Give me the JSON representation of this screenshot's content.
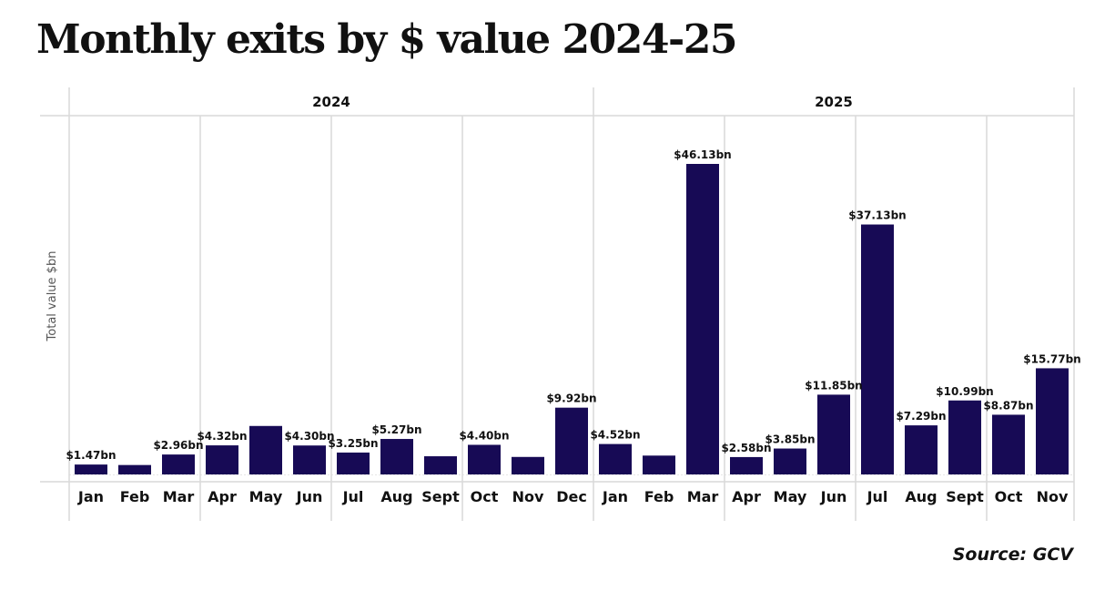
{
  "title": "Monthly exits by $ value 2024-25",
  "source": "Source: GCV",
  "colors": {
    "bar": "#170a55",
    "grid": "#d9d9d9",
    "text": "#111111"
  },
  "chart_data": {
    "type": "bar",
    "title": "Monthly exits by $ value 2024-25",
    "xlabel": "",
    "ylabel": "Total value $bn",
    "ylim": [
      0,
      50
    ],
    "grid": true,
    "legend": "none",
    "groups": [
      {
        "label": "2024",
        "categories": [
          "Jan",
          "Feb",
          "Mar",
          "Apr",
          "May",
          "Jun",
          "Jul",
          "Aug",
          "Sept",
          "Oct",
          "Nov",
          "Dec"
        ]
      },
      {
        "label": "2025",
        "categories": [
          "Jan",
          "Feb",
          "Mar",
          "Apr",
          "May",
          "Jun",
          "Jul",
          "Aug",
          "Sept",
          "Oct",
          "Nov"
        ]
      }
    ],
    "categories": [
      "Jan 2024",
      "Feb 2024",
      "Mar 2024",
      "Apr 2024",
      "May 2024",
      "Jun 2024",
      "Jul 2024",
      "Aug 2024",
      "Sept 2024",
      "Oct 2024",
      "Nov 2024",
      "Dec 2024",
      "Jan 2025",
      "Feb 2025",
      "Mar 2025",
      "Apr 2025",
      "May 2025",
      "Jun 2025",
      "Jul 2025",
      "Aug 2025",
      "Sept 2025",
      "Oct 2025",
      "Nov 2025"
    ],
    "month_labels": [
      "Jan",
      "Feb",
      "Mar",
      "Apr",
      "May",
      "Jun",
      "Jul",
      "Aug",
      "Sept",
      "Oct",
      "Nov",
      "Dec",
      "Jan",
      "Feb",
      "Mar",
      "Apr",
      "May",
      "Jun",
      "Jul",
      "Aug",
      "Sept",
      "Oct",
      "Nov"
    ],
    "values": [
      1.47,
      1.4,
      2.96,
      4.32,
      7.2,
      4.3,
      3.25,
      5.27,
      2.7,
      4.4,
      2.6,
      9.92,
      4.52,
      2.8,
      46.13,
      2.58,
      3.85,
      11.85,
      37.13,
      7.29,
      10.99,
      8.87,
      15.77
    ],
    "data_labels": [
      "$1.47bn",
      "",
      "$2.96bn",
      "$4.32bn",
      "",
      "$4.30bn",
      "$3.25bn",
      "$5.27bn",
      "",
      "$4.40bn",
      "",
      "$9.92bn",
      "$4.52bn",
      "",
      "$46.13bn",
      "$2.58bn",
      "$3.85bn",
      "$11.85bn",
      "$37.13bn",
      "$7.29bn",
      "$10.99bn",
      "$8.87bn",
      "$15.77bn"
    ]
  }
}
